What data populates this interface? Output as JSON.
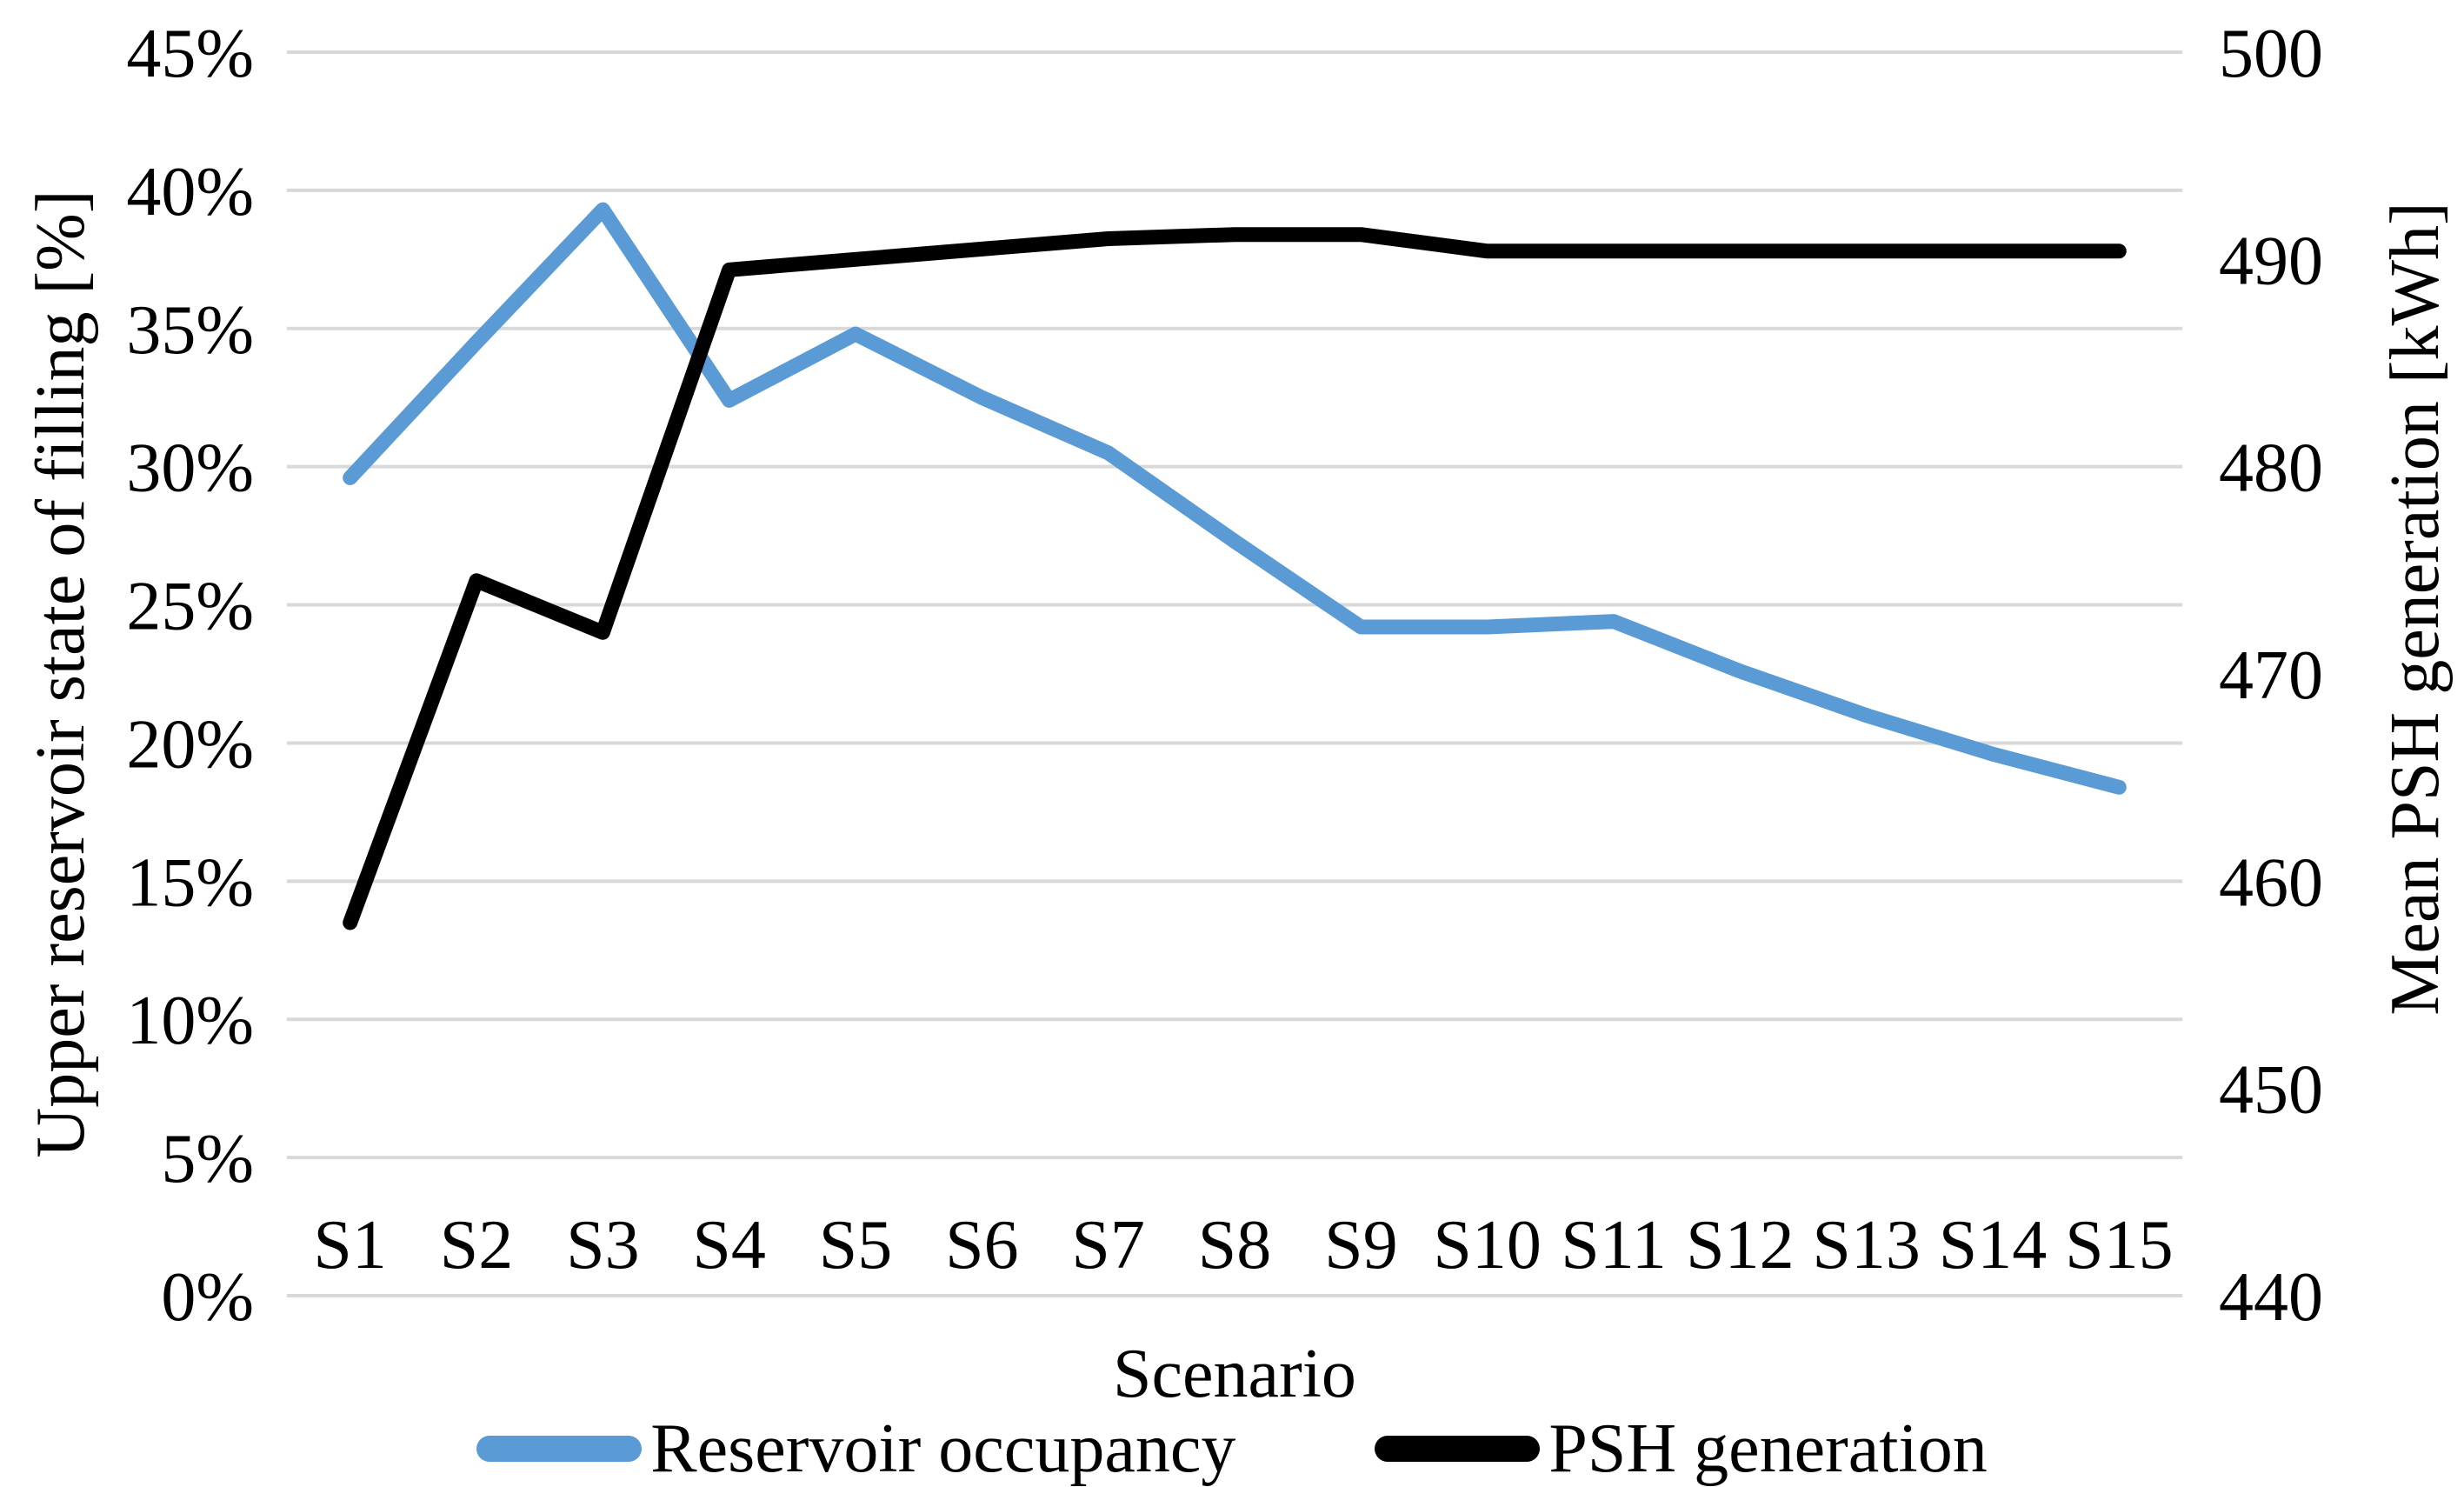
{
  "chart_data": {
    "type": "line",
    "title": "",
    "categories": [
      "S1",
      "S2",
      "S3",
      "S4",
      "S5",
      "S6",
      "S7",
      "S8",
      "S9",
      "S10",
      "S11",
      "S12",
      "S13",
      "S14",
      "S15"
    ],
    "series": [
      {
        "name": "Reservoir occupancy",
        "axis": "left",
        "color": "#5B9BD5",
        "values": [
          29.6,
          34.5,
          39.3,
          32.4,
          34.8,
          32.5,
          30.5,
          27.3,
          24.2,
          24.2,
          24.4,
          22.6,
          21.0,
          19.6,
          18.4
        ]
      },
      {
        "name": "PSH generation",
        "axis": "right",
        "color": "#000000",
        "values": [
          458,
          474.5,
          472,
          489.5,
          490,
          490.5,
          491,
          491.2,
          491.2,
          490.4,
          490.4,
          490.4,
          490.4,
          490.4,
          490.4
        ]
      }
    ],
    "x_axis": {
      "title": "Scenario"
    },
    "y_axis_left": {
      "title": "Upper reservoir state of filling [%]",
      "min": 0,
      "max": 45,
      "tick_step": 5,
      "tick_labels": [
        "0%",
        "5%",
        "10%",
        "15%",
        "20%",
        "25%",
        "30%",
        "35%",
        "40%",
        "45%"
      ]
    },
    "y_axis_right": {
      "title": "Mean PSH generation [kWh]",
      "min": 440,
      "max": 500,
      "tick_step": 10,
      "tick_labels": [
        "440",
        "450",
        "460",
        "470",
        "480",
        "490",
        "500"
      ]
    },
    "grid": true,
    "gridline_color": "#D9D9D9",
    "background": "#FFFFFF",
    "legend_position": "bottom"
  },
  "legend": {
    "items": [
      {
        "label": "Reservoir occupancy",
        "color": "#5B9BD5"
      },
      {
        "label": "PSH generation",
        "color": "#000000"
      }
    ]
  }
}
